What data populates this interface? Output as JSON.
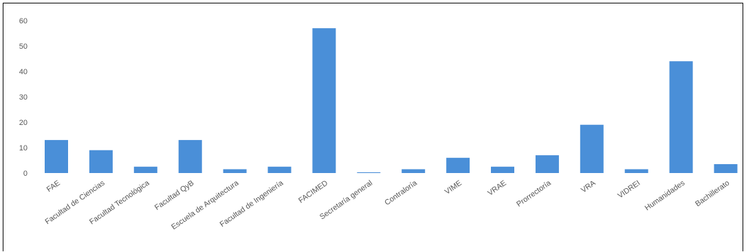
{
  "chart_data": {
    "type": "bar",
    "title": "",
    "xlabel": "",
    "ylabel": "",
    "ylim": [
      0,
      60
    ],
    "yticks": [
      0,
      10,
      20,
      30,
      40,
      50,
      60
    ],
    "grid": false,
    "bar_color": "#4a8fd8",
    "categories": [
      "FAE",
      "Facultad de Ciencias",
      "Facultad Tecnológica",
      "Facultad QyB",
      "Escuela de Arquitectura",
      "Facultad de Ingeniería",
      "FACIMED",
      "Secretaría general",
      "Contraloría",
      "VIME",
      "VRAE",
      "Prorrectoría",
      "VRA",
      "VIDREI",
      "Humanidades",
      "Bachillerato"
    ],
    "values": [
      13,
      9,
      2.5,
      13,
      1.5,
      2.5,
      57,
      0.3,
      1.5,
      6,
      2.5,
      7,
      19,
      1.5,
      44,
      3.5
    ]
  }
}
